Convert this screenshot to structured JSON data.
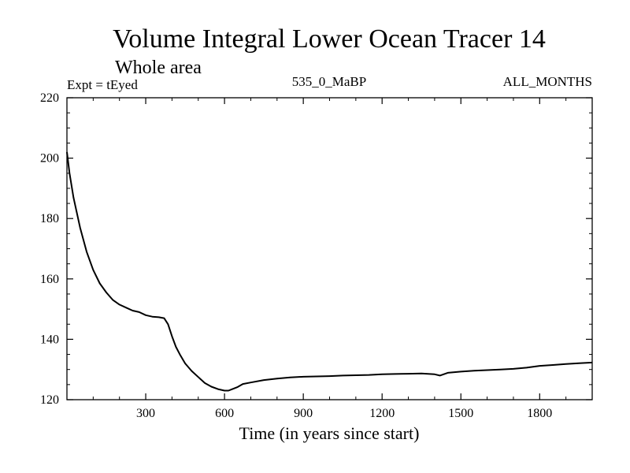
{
  "chart_data": {
    "type": "line",
    "title": "Volume Integral Lower Ocean Tracer 14",
    "subtitle": "Whole area",
    "experiment": "Expt = tEyed",
    "run": "535_0_MaBP",
    "period": "ALL_MONTHS",
    "xlabel": "Time (in years since start)",
    "ylabel": "",
    "xlim": [
      0,
      2000
    ],
    "ylim": [
      120,
      220
    ],
    "xticks": [
      300,
      600,
      900,
      1200,
      1500,
      1800
    ],
    "yticks": [
      120,
      140,
      160,
      180,
      200,
      220
    ],
    "series": [
      {
        "name": "Volume Integral Lower Ocean Tracer 14",
        "x": [
          0,
          10,
          25,
          50,
          75,
          100,
          125,
          150,
          175,
          200,
          225,
          250,
          275,
          300,
          325,
          350,
          370,
          385,
          400,
          415,
          430,
          450,
          475,
          500,
          525,
          550,
          575,
          600,
          615,
          630,
          650,
          670,
          700,
          750,
          800,
          850,
          900,
          950,
          1000,
          1050,
          1100,
          1150,
          1200,
          1250,
          1300,
          1350,
          1400,
          1420,
          1450,
          1500,
          1550,
          1600,
          1650,
          1700,
          1750,
          1800,
          1850,
          1900,
          1950,
          2000
        ],
        "y": [
          202,
          195,
          187,
          177,
          169,
          163,
          158.5,
          155.5,
          153,
          151.5,
          150.5,
          149.5,
          149,
          148,
          147.5,
          147.3,
          147,
          145,
          141,
          137.5,
          135,
          132,
          129.5,
          127.5,
          125.5,
          124.3,
          123.5,
          123,
          123,
          123.5,
          124.2,
          125.2,
          125.7,
          126.5,
          127,
          127.4,
          127.6,
          127.7,
          127.8,
          128,
          128.1,
          128.2,
          128.4,
          128.5,
          128.6,
          128.7,
          128.4,
          128,
          128.9,
          129.3,
          129.6,
          129.8,
          130,
          130.2,
          130.6,
          131.2,
          131.5,
          131.8,
          132.1,
          132.3
        ]
      }
    ]
  },
  "colors": {
    "line": "#000000",
    "frame": "#000000",
    "background": "#ffffff"
  }
}
